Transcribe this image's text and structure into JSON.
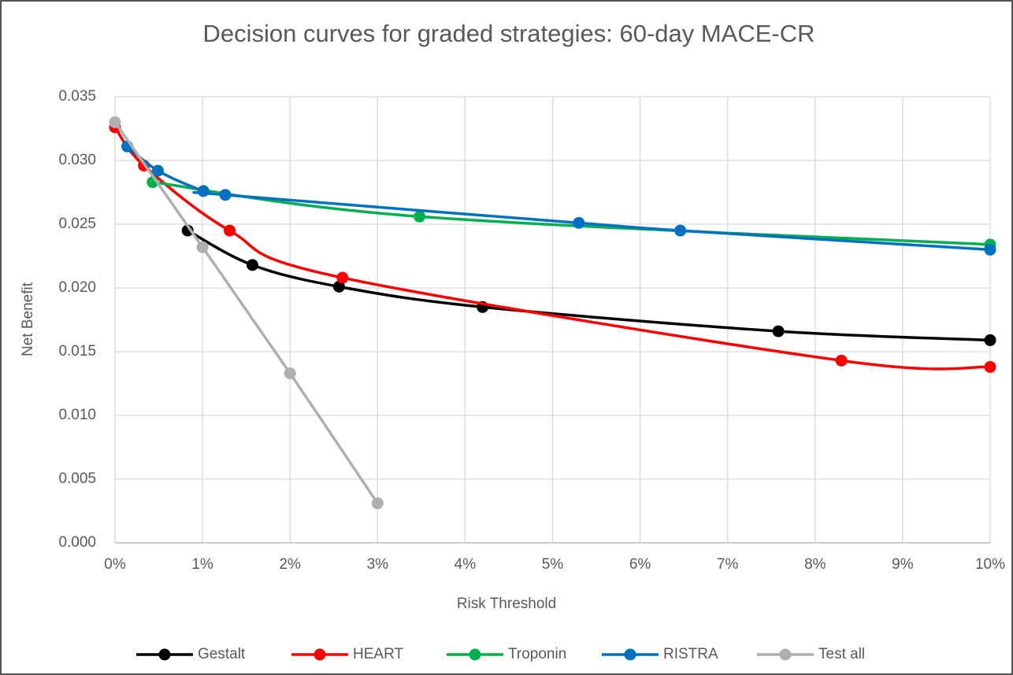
{
  "chart_data": {
    "type": "line",
    "title": "Decision curves for graded strategies: 60-day MACE-CR",
    "x_label": "Risk Threshold",
    "y_label": "Net Benefit",
    "xlim": [
      0,
      10
    ],
    "xticks": [
      {
        "value": 0,
        "label": "0%"
      },
      {
        "value": 1,
        "label": "1%"
      },
      {
        "value": 2,
        "label": "2%"
      },
      {
        "value": 3,
        "label": "3%"
      },
      {
        "value": 4,
        "label": "4%"
      },
      {
        "value": 5,
        "label": "5%"
      },
      {
        "value": 6,
        "label": "6%"
      },
      {
        "value": 7,
        "label": "7%"
      },
      {
        "value": 8,
        "label": "8%"
      },
      {
        "value": 9,
        "label": "9%"
      },
      {
        "value": 10,
        "label": "10%"
      }
    ],
    "ylim": [
      0,
      0.035
    ],
    "yticks": [
      {
        "value": 0,
        "label": "0.000"
      },
      0.005,
      {
        "value": 0.01,
        "label": "0.010"
      },
      0.015,
      {
        "value": 0.02,
        "label": "0.020"
      },
      0.025,
      {
        "value": 0.03,
        "label": "0.030"
      },
      0.035
    ],
    "grid": true,
    "legend": "bottom",
    "series": [
      {
        "name": "Gestalt",
        "color": "#000000",
        "x": [
          0.83,
          1.57,
          2.56,
          4.2,
          7.58,
          10
        ],
        "values": [
          0.0245,
          0.0218,
          0.0201,
          0.0185,
          0.0166,
          0.0159
        ]
      },
      {
        "name": "HEART",
        "color": "#ff0000",
        "x": [
          0,
          0.33,
          1.31,
          2.6,
          8.3,
          10
        ],
        "values": [
          0.0326,
          0.0296,
          0.0245,
          0.0208,
          0.0143,
          0.0138
        ]
      },
      {
        "name": "Troponin",
        "color": "#00b050",
        "x": [
          0.43,
          3.48,
          10
        ],
        "values": [
          0.0283,
          0.0256,
          0.0234
        ]
      },
      {
        "name": "RISTRA",
        "color": "#0070c0",
        "x": [
          0.14,
          0.49,
          1.01,
          1.26,
          5.3,
          6.46,
          10
        ],
        "values": [
          0.0311,
          0.0292,
          0.0276,
          0.0273,
          0.0251,
          0.0245,
          0.023
        ]
      },
      {
        "name": "Test all",
        "color": "#afafaf",
        "x": [
          0,
          1,
          2,
          3
        ],
        "values": [
          0.033,
          0.0232,
          0.0133,
          0.0031
        ]
      }
    ]
  }
}
